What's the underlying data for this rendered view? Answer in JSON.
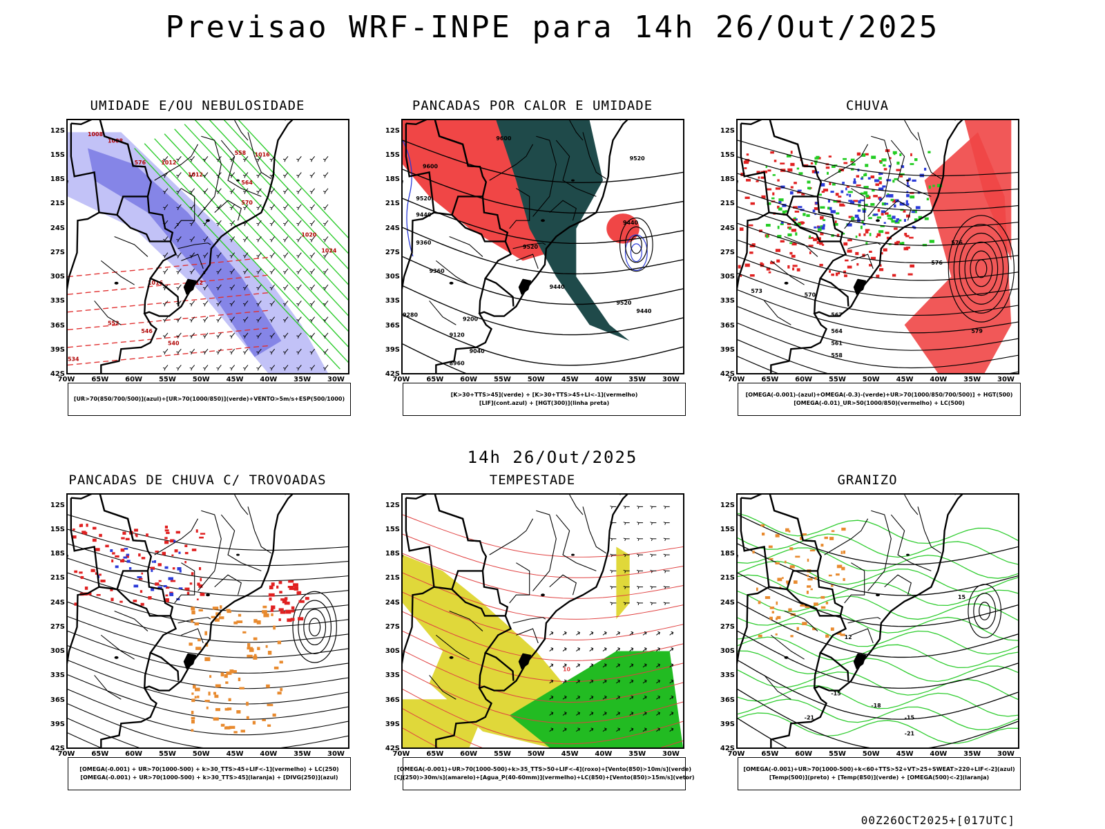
{
  "page": {
    "title": "Previsao WRF-INPE  para 14h 26/Out/2025",
    "mid_title": "14h 26/Out/2025",
    "stamp": "00Z26OCT2025+[017UTC]"
  },
  "axes": {
    "lat_labels": [
      "12S",
      "15S",
      "18S",
      "21S",
      "24S",
      "27S",
      "30S",
      "33S",
      "36S",
      "39S",
      "42S"
    ],
    "lon_labels": [
      "70W",
      "65W",
      "60W",
      "55W",
      "50W",
      "45W",
      "40W",
      "35W",
      "30W"
    ],
    "lat_range": [
      -42,
      -10.5
    ],
    "lon_range": [
      -70,
      -28
    ]
  },
  "colors": {
    "blue_fill": "#8f8ff0",
    "red_fill": "#f04646",
    "green_line": "#2dcc2d",
    "dark_teal": "#1f4a4a",
    "yellow_fill": "#e0d83a",
    "orange": "#e88a2e"
  },
  "panels": [
    {
      "title": "UMIDADE E/OU NEBULOSIDADE",
      "legend": [
        "[UR>70(850/700/500)](azul)+[UR>70(1000/850)](verde)+VENTO>5m/s+ESP(500/1000)"
      ],
      "contour_labels": [
        "1008",
        "1008",
        "1012",
        "1012",
        "1016",
        "1020",
        "1024",
        "1016",
        "1012",
        "552",
        "546",
        "540",
        "534",
        "558",
        "564",
        "570",
        "576"
      ]
    },
    {
      "title": "PANCADAS POR CALOR E UMIDADE",
      "legend": [
        "[K>30+TTS>45](verde) + [K>30+TTS>45+LI<-1](vermelho)",
        "[LIF](cont.azul) + [HGT(300)](linha preta)"
      ],
      "contour_labels": [
        "9600",
        "9600",
        "9520",
        "9440",
        "9360",
        "9360",
        "9440",
        "9520",
        "9280",
        "9200",
        "9120",
        "9040",
        "8960",
        "9520",
        "9440",
        "9440",
        "9520"
      ]
    },
    {
      "title": "CHUVA",
      "legend": [
        "[OMEGA(-0.001)-(azul)+OMEGA(-0.3)-(verde)+UR>70(1000/850/700/500)] + HGT(500)",
        "[OMEGA(-0.01)_UR>50(1000/850)(vermelho) + LC(500)"
      ],
      "contour_labels": [
        "573",
        "570",
        "567",
        "564",
        "561",
        "558",
        "576",
        "576",
        "579"
      ]
    },
    {
      "title": "PANCADAS DE CHUVA C/ TROVOADAS",
      "legend": [
        "[OMEGA(-0.001) + UR>70(1000-500) + k>30_TTS>45+LIF<-1](vermelho) + LC(250)",
        "[OMEGA(-0.001) + UR>70(1000-500) + k>30_TTS>45](laranja) + [DIVG(250)](azul)"
      ],
      "contour_labels": []
    },
    {
      "title": "TEMPESTADE",
      "legend": [
        "[OMEGA(-0.001)+UR>70(1000-500)+k>35_TTS>50+LIF<-4](roxo)+[Vento(850)>10m/s](verde)",
        "[CJ(250)>30m/s](amarelo)+[Agua_P(40-60mm)](vermelho)+LC(850)+[Vento(850)>15m/s](vetor)"
      ],
      "contour_labels": [
        "10"
      ]
    },
    {
      "title": "GRANIZO",
      "legend": [
        "[OMEGA(-0.001)+UR>70(1000-500)+k<60+TTS>52+VT>25+SWEAT>220+LIF<-2](azul)",
        "[Temp(500)](preto) + [Temp(850)](verde) + [OMEGA(500)<-2](laranja)"
      ],
      "contour_labels": [
        "-15",
        "-18",
        "-21",
        "-15",
        "-21",
        "12",
        "15"
      ]
    }
  ]
}
